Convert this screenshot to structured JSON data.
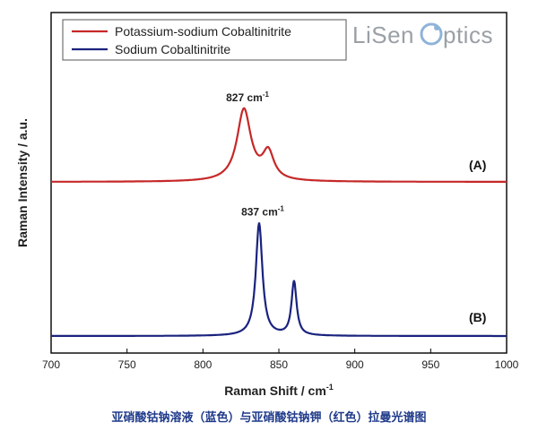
{
  "chart_data": {
    "type": "line",
    "xlabel_main": "Raman Shift / cm",
    "xlabel_sup": "-1",
    "ylabel": "Raman Intensity / a.u.",
    "xlim": [
      700,
      1000
    ],
    "x_ticks": [
      700,
      750,
      800,
      850,
      900,
      950,
      1000
    ],
    "y_ticks": [],
    "grid": false,
    "legend_position": "top-left",
    "series": [
      {
        "name": "Potassium-sodium Cobaltinitrite",
        "trace_label": "(A)",
        "color": "#c62828",
        "baseline": 0.0,
        "peaks": [
          {
            "x": 827,
            "height": 1.0,
            "width": 5.5
          },
          {
            "x": 843,
            "height": 0.38,
            "width": 4.5
          }
        ],
        "annotation": {
          "x": 827,
          "text": "827 cm",
          "sup": "-1"
        }
      },
      {
        "name": "Sodium Cobaltinitrite",
        "trace_label": "(B)",
        "color": "#1a237e",
        "baseline": 0.0,
        "peaks": [
          {
            "x": 837,
            "height": 1.0,
            "width": 2.6
          },
          {
            "x": 860,
            "height": 0.48,
            "width": 2.0
          }
        ],
        "annotation": {
          "x": 837,
          "text": "837 cm",
          "sup": "-1"
        }
      }
    ]
  },
  "watermark": {
    "text_left": "LiSen",
    "text_right": "ptics"
  },
  "caption": "亚硝酸钴钠溶液（蓝色）与亚硝酸钴钠钾（红色）拉曼光谱图"
}
